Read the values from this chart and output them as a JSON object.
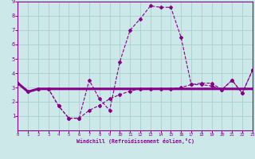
{
  "x": [
    0,
    1,
    2,
    3,
    4,
    5,
    6,
    7,
    8,
    9,
    10,
    11,
    12,
    13,
    14,
    15,
    16,
    17,
    18,
    19,
    20,
    21,
    22,
    23
  ],
  "line_main_y": [
    3.3,
    2.7,
    2.9,
    2.9,
    1.7,
    0.85,
    0.85,
    3.5,
    2.2,
    1.4,
    4.8,
    7.0,
    7.8,
    8.7,
    8.6,
    8.6,
    6.5,
    3.2,
    3.2,
    3.1,
    2.85,
    3.5,
    2.6,
    4.2
  ],
  "line_flat_y": [
    3.3,
    2.7,
    2.9,
    2.9,
    2.9,
    2.9,
    2.9,
    2.9,
    2.9,
    2.9,
    2.9,
    2.9,
    2.9,
    2.9,
    2.9,
    2.9,
    2.9,
    2.9,
    2.9,
    2.9,
    2.9,
    2.9,
    2.9,
    2.9
  ],
  "line_low_y": [
    3.3,
    2.7,
    2.9,
    2.9,
    1.7,
    0.85,
    0.85,
    1.4,
    1.75,
    2.2,
    2.5,
    2.75,
    2.9,
    2.9,
    2.9,
    2.9,
    3.0,
    3.2,
    3.3,
    3.3,
    2.85,
    3.5,
    2.6,
    4.2
  ],
  "bg_color": "#cce8e8",
  "line_color": "#880088",
  "grid_color": "#aad0d0",
  "xlabel": "Windchill (Refroidissement éolien,°C)",
  "xlim": [
    0,
    23
  ],
  "ylim": [
    0,
    9
  ],
  "xticks": [
    0,
    1,
    2,
    3,
    4,
    5,
    6,
    7,
    8,
    9,
    10,
    11,
    12,
    13,
    14,
    15,
    16,
    17,
    18,
    19,
    20,
    21,
    22,
    23
  ],
  "yticks": [
    1,
    2,
    3,
    4,
    5,
    6,
    7,
    8,
    9
  ]
}
